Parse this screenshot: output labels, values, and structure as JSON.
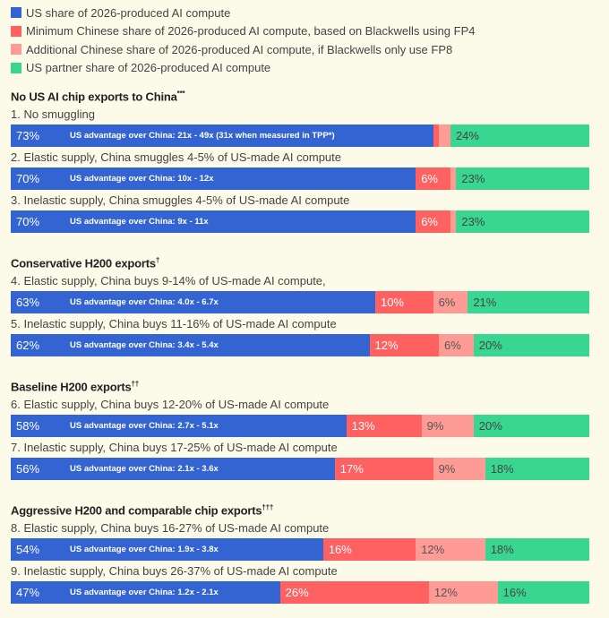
{
  "colors": {
    "us": "#3364d2",
    "cn_min": "#ff6161",
    "cn_add": "#ff9b95",
    "partner": "#39d692",
    "bg": "#fcfae8"
  },
  "legend": [
    {
      "key": "us",
      "label": "US share of 2026-produced AI compute"
    },
    {
      "key": "cn_min",
      "label": "Minimum Chinese share of 2026-produced AI compute, based on Blackwells using FP4"
    },
    {
      "key": "cn_add",
      "label": "Additional Chinese share of 2026-produced AI compute, if Blackwells only use FP8"
    },
    {
      "key": "partner",
      "label": "US partner share of 2026-produced AI compute"
    }
  ],
  "chart_data": {
    "type": "bar",
    "orientation": "horizontal-stacked-100",
    "series_keys": [
      "us",
      "cn_min",
      "cn_add",
      "partner"
    ],
    "sections": [
      {
        "title": "No US AI chip exports to China",
        "mark": "***",
        "rows": [
          {
            "label": "1. No smuggling",
            "advantage": "US advantage over China: 21x - 49x (31x when measured in TPP*)",
            "values": [
              73,
              1,
              2,
              24
            ],
            "labels": [
              "73%",
              "",
              "",
              "24%"
            ]
          },
          {
            "label": "2. Elastic supply, China smuggles 4-5% of US-made AI compute",
            "advantage": "US advantage over China: 10x - 12x",
            "values": [
              70,
              6,
              1,
              23
            ],
            "labels": [
              "70%",
              "6%",
              "",
              "23%"
            ]
          },
          {
            "label": "3. Inelastic supply, China smuggles 4-5% of US-made AI compute",
            "advantage": "US advantage over China: 9x - 11x",
            "values": [
              70,
              6,
              1,
              23
            ],
            "labels": [
              "70%",
              "6%",
              "",
              "23%"
            ]
          }
        ]
      },
      {
        "title": "Conservative H200 exports",
        "mark": "†",
        "rows": [
          {
            "label": "4. Elastic supply, China buys 9-14% of US-made AI compute,",
            "advantage": "US advantage over China: 4.0x - 6.7x",
            "values": [
              63,
              10,
              6,
              21
            ],
            "labels": [
              "63%",
              "10%",
              "6%",
              "21%"
            ]
          },
          {
            "label": "5. Inelastic supply, China buys 11-16% of US-made AI compute",
            "advantage": "US advantage over China: 3.4x - 5.4x",
            "values": [
              62,
              12,
              6,
              20
            ],
            "labels": [
              "62%",
              "12%",
              "6%",
              "20%"
            ]
          }
        ]
      },
      {
        "title": "Baseline H200 exports",
        "mark": "††",
        "rows": [
          {
            "label": "6. Elastic supply, China buys 12-20% of US-made AI compute",
            "advantage": "US advantage over China: 2.7x - 5.1x",
            "values": [
              58,
              13,
              9,
              20
            ],
            "labels": [
              "58%",
              "13%",
              "9%",
              "20%"
            ]
          },
          {
            "label": "7. Inelastic supply, China buys 17-25% of US-made AI compute",
            "advantage": "US advantage over China: 2.1x - 3.6x",
            "values": [
              56,
              17,
              9,
              18
            ],
            "labels": [
              "56%",
              "17%",
              "9%",
              "18%"
            ]
          }
        ]
      },
      {
        "title": "Aggressive H200 and comparable chip exports",
        "mark": "†††",
        "rows": [
          {
            "label": "8. Elastic supply, China buys 16-27% of US-made AI compute",
            "advantage": "US advantage over China: 1.9x - 3.8x",
            "values": [
              54,
              16,
              12,
              18
            ],
            "labels": [
              "54%",
              "16%",
              "12%",
              "18%"
            ]
          },
          {
            "label": "9. Inelastic supply, China buys 26-37% of US-made AI compute",
            "advantage": "US advantage over China: 1.2x - 2.1x",
            "values": [
              47,
              26,
              12,
              16
            ],
            "labels": [
              "47%",
              "26%",
              "12%",
              "16%"
            ]
          }
        ]
      }
    ]
  }
}
